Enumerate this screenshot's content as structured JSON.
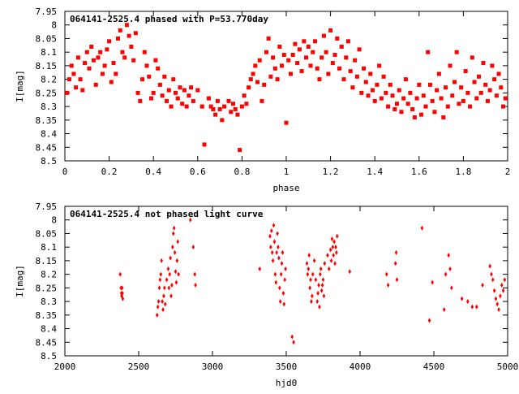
{
  "colors": {
    "points": "#ff0000",
    "axes": "#000000",
    "background": "#ffffff"
  },
  "chart_data": [
    {
      "type": "scatter",
      "title": "064141-2525.4 phased with P=53.770day",
      "xlabel": "phase",
      "ylabel": "I[mag]",
      "xlim": [
        0,
        2
      ],
      "ylim": [
        7.95,
        8.5
      ],
      "y_inverted": true,
      "grid": false,
      "legend": "none",
      "marker": "filled-square",
      "xticks": [
        0,
        0.2,
        0.4,
        0.6,
        0.8,
        1,
        1.2,
        1.4,
        1.6,
        1.8,
        2
      ],
      "xtick_labels": [
        "0",
        "0.2",
        "0.4",
        "0.6",
        "0.8",
        "1",
        "1.2",
        "1.4",
        "1.6",
        "1.8",
        "2"
      ],
      "yticks": [
        7.95,
        8,
        8.05,
        8.1,
        8.15,
        8.2,
        8.25,
        8.3,
        8.35,
        8.4,
        8.45,
        8.5
      ],
      "ytick_labels": [
        "7.95",
        "8",
        "8.05",
        "8.1",
        "8.15",
        "8.2",
        "8.25",
        "8.3",
        "8.35",
        "8.4",
        "8.45",
        "8.5"
      ],
      "points": [
        [
          0.01,
          8.25
        ],
        [
          0.02,
          8.2
        ],
        [
          0.03,
          8.15
        ],
        [
          0.04,
          8.18
        ],
        [
          0.05,
          8.23
        ],
        [
          0.06,
          8.12
        ],
        [
          0.07,
          8.2
        ],
        [
          0.08,
          8.24
        ],
        [
          0.09,
          8.14
        ],
        [
          0.1,
          8.1
        ],
        [
          0.11,
          8.16
        ],
        [
          0.12,
          8.08
        ],
        [
          0.13,
          8.13
        ],
        [
          0.14,
          8.22
        ],
        [
          0.15,
          8.12
        ],
        [
          0.16,
          8.1
        ],
        [
          0.17,
          8.18
        ],
        [
          0.18,
          8.15
        ],
        [
          0.19,
          8.09
        ],
        [
          0.2,
          8.06
        ],
        [
          0.21,
          8.21
        ],
        [
          0.22,
          8.14
        ],
        [
          0.23,
          8.18
        ],
        [
          0.24,
          8.05
        ],
        [
          0.25,
          8.02
        ],
        [
          0.26,
          8.1
        ],
        [
          0.27,
          8.12
        ],
        [
          0.28,
          8.0
        ],
        [
          0.29,
          8.04
        ],
        [
          0.3,
          8.08
        ],
        [
          0.31,
          8.13
        ],
        [
          0.32,
          8.03
        ],
        [
          0.33,
          8.25
        ],
        [
          0.34,
          8.28
        ],
        [
          0.35,
          8.2
        ],
        [
          0.36,
          8.1
        ],
        [
          0.37,
          8.15
        ],
        [
          0.38,
          8.19
        ],
        [
          0.39,
          8.27
        ],
        [
          0.4,
          8.25
        ],
        [
          0.41,
          8.13
        ],
        [
          0.42,
          8.16
        ],
        [
          0.43,
          8.22
        ],
        [
          0.44,
          8.26
        ],
        [
          0.45,
          8.19
        ],
        [
          0.46,
          8.28
        ],
        [
          0.47,
          8.24
        ],
        [
          0.48,
          8.3
        ],
        [
          0.49,
          8.2
        ],
        [
          0.5,
          8.25
        ],
        [
          0.51,
          8.27
        ],
        [
          0.52,
          8.23
        ],
        [
          0.53,
          8.29
        ],
        [
          0.54,
          8.24
        ],
        [
          0.55,
          8.3
        ],
        [
          0.56,
          8.26
        ],
        [
          0.57,
          8.23
        ],
        [
          0.58,
          8.28
        ],
        [
          0.6,
          8.24
        ],
        [
          0.62,
          8.3
        ],
        [
          0.63,
          8.44
        ],
        [
          0.65,
          8.27
        ],
        [
          0.66,
          8.3
        ],
        [
          0.67,
          8.31
        ],
        [
          0.68,
          8.33
        ],
        [
          0.69,
          8.28
        ],
        [
          0.7,
          8.31
        ],
        [
          0.71,
          8.35
        ],
        [
          0.72,
          8.3
        ],
        [
          0.74,
          8.28
        ],
        [
          0.75,
          8.32
        ],
        [
          0.76,
          8.29
        ],
        [
          0.77,
          8.31
        ],
        [
          0.78,
          8.33
        ],
        [
          0.79,
          8.46
        ],
        [
          0.8,
          8.3
        ],
        [
          0.81,
          8.26
        ],
        [
          0.82,
          8.29
        ],
        [
          0.83,
          8.23
        ],
        [
          0.84,
          8.2
        ],
        [
          0.85,
          8.18
        ],
        [
          0.86,
          8.15
        ],
        [
          0.87,
          8.21
        ],
        [
          0.88,
          8.13
        ],
        [
          0.89,
          8.28
        ],
        [
          0.9,
          8.22
        ],
        [
          0.91,
          8.1
        ],
        [
          0.92,
          8.05
        ],
        [
          0.93,
          8.19
        ],
        [
          0.94,
          8.12
        ],
        [
          0.95,
          8.16
        ],
        [
          0.96,
          8.2
        ],
        [
          0.97,
          8.08
        ],
        [
          0.98,
          8.15
        ],
        [
          0.99,
          8.11
        ],
        [
          1.0,
          8.36
        ],
        [
          1.01,
          8.13
        ],
        [
          1.02,
          8.18
        ],
        [
          1.03,
          8.11
        ],
        [
          1.04,
          8.07
        ],
        [
          1.05,
          8.14
        ],
        [
          1.06,
          8.09
        ],
        [
          1.07,
          8.17
        ],
        [
          1.08,
          8.06
        ],
        [
          1.09,
          8.12
        ],
        [
          1.1,
          8.08
        ],
        [
          1.11,
          8.15
        ],
        [
          1.12,
          8.1
        ],
        [
          1.13,
          8.06
        ],
        [
          1.14,
          8.16
        ],
        [
          1.15,
          8.2
        ],
        [
          1.16,
          8.12
        ],
        [
          1.17,
          8.04
        ],
        [
          1.18,
          8.1
        ],
        [
          1.19,
          8.18
        ],
        [
          1.2,
          8.02
        ],
        [
          1.21,
          8.14
        ],
        [
          1.22,
          8.11
        ],
        [
          1.23,
          8.05
        ],
        [
          1.24,
          8.16
        ],
        [
          1.25,
          8.08
        ],
        [
          1.26,
          8.2
        ],
        [
          1.27,
          8.12
        ],
        [
          1.28,
          8.06
        ],
        [
          1.29,
          8.17
        ],
        [
          1.3,
          8.23
        ],
        [
          1.31,
          8.13
        ],
        [
          1.32,
          8.19
        ],
        [
          1.33,
          8.09
        ],
        [
          1.34,
          8.25
        ],
        [
          1.35,
          8.16
        ],
        [
          1.36,
          8.21
        ],
        [
          1.37,
          8.26
        ],
        [
          1.38,
          8.18
        ],
        [
          1.39,
          8.24
        ],
        [
          1.4,
          8.28
        ],
        [
          1.41,
          8.22
        ],
        [
          1.42,
          8.15
        ],
        [
          1.43,
          8.27
        ],
        [
          1.44,
          8.19
        ],
        [
          1.45,
          8.25
        ],
        [
          1.46,
          8.3
        ],
        [
          1.47,
          8.22
        ],
        [
          1.48,
          8.26
        ],
        [
          1.49,
          8.31
        ],
        [
          1.5,
          8.29
        ],
        [
          1.51,
          8.24
        ],
        [
          1.52,
          8.32
        ],
        [
          1.53,
          8.27
        ],
        [
          1.54,
          8.2
        ],
        [
          1.55,
          8.29
        ],
        [
          1.56,
          8.25
        ],
        [
          1.57,
          8.31
        ],
        [
          1.58,
          8.34
        ],
        [
          1.59,
          8.27
        ],
        [
          1.6,
          8.22
        ],
        [
          1.61,
          8.33
        ],
        [
          1.62,
          8.26
        ],
        [
          1.63,
          8.3
        ],
        [
          1.64,
          8.1
        ],
        [
          1.65,
          8.22
        ],
        [
          1.66,
          8.28
        ],
        [
          1.67,
          8.32
        ],
        [
          1.68,
          8.24
        ],
        [
          1.69,
          8.18
        ],
        [
          1.7,
          8.27
        ],
        [
          1.71,
          8.34
        ],
        [
          1.72,
          8.23
        ],
        [
          1.73,
          8.3
        ],
        [
          1.74,
          8.15
        ],
        [
          1.75,
          8.26
        ],
        [
          1.76,
          8.21
        ],
        [
          1.77,
          8.1
        ],
        [
          1.78,
          8.29
        ],
        [
          1.79,
          8.23
        ],
        [
          1.8,
          8.28
        ],
        [
          1.81,
          8.17
        ],
        [
          1.82,
          8.25
        ],
        [
          1.83,
          8.3
        ],
        [
          1.84,
          8.12
        ],
        [
          1.85,
          8.21
        ],
        [
          1.86,
          8.27
        ],
        [
          1.87,
          8.19
        ],
        [
          1.88,
          8.25
        ],
        [
          1.89,
          8.14
        ],
        [
          1.9,
          8.22
        ],
        [
          1.91,
          8.28
        ],
        [
          1.92,
          8.24
        ],
        [
          1.93,
          8.15
        ],
        [
          1.94,
          8.2
        ],
        [
          1.95,
          8.26
        ],
        [
          1.96,
          8.18
        ],
        [
          1.97,
          8.23
        ],
        [
          1.98,
          8.3
        ],
        [
          1.99,
          8.27
        ]
      ]
    },
    {
      "type": "scatter",
      "title": "064141-2525.4 not phased light curve",
      "xlabel": "hjd0",
      "ylabel": "I[mag]",
      "xlim": [
        2000,
        5000
      ],
      "ylim": [
        7.95,
        8.5
      ],
      "y_inverted": true,
      "grid": false,
      "legend": "none",
      "marker": "small-diamond",
      "xticks": [
        2000,
        2500,
        3000,
        3500,
        4000,
        4500,
        5000
      ],
      "xtick_labels": [
        "2000",
        "2500",
        "3000",
        "3500",
        "4000",
        "4500",
        "5000"
      ],
      "yticks": [
        7.95,
        8,
        8.05,
        8.1,
        8.15,
        8.2,
        8.25,
        8.3,
        8.35,
        8.4,
        8.45,
        8.5
      ],
      "ytick_labels": [
        "7.95",
        "8",
        "8.05",
        "8.1",
        "8.15",
        "8.2",
        "8.25",
        "8.3",
        "8.35",
        "8.4",
        "8.45",
        "8.5"
      ],
      "points": [
        [
          2375,
          8.2
        ],
        [
          2380,
          8.25
        ],
        [
          2383,
          8.27
        ],
        [
          2385,
          8.28
        ],
        [
          2388,
          8.25
        ],
        [
          2390,
          8.27
        ],
        [
          2392,
          8.29
        ],
        [
          2625,
          8.35
        ],
        [
          2630,
          8.32
        ],
        [
          2635,
          8.3
        ],
        [
          2640,
          8.25
        ],
        [
          2645,
          8.22
        ],
        [
          2650,
          8.2
        ],
        [
          2655,
          8.15
        ],
        [
          2660,
          8.3
        ],
        [
          2665,
          8.33
        ],
        [
          2670,
          8.28
        ],
        [
          2675,
          8.25
        ],
        [
          2680,
          8.31
        ],
        [
          2690,
          8.22
        ],
        [
          2700,
          8.18
        ],
        [
          2705,
          8.25
        ],
        [
          2710,
          8.2
        ],
        [
          2715,
          8.14
        ],
        [
          2720,
          8.28
        ],
        [
          2725,
          8.24
        ],
        [
          2730,
          8.1
        ],
        [
          2735,
          8.05
        ],
        [
          2740,
          8.03
        ],
        [
          2745,
          8.12
        ],
        [
          2750,
          8.19
        ],
        [
          2755,
          8.23
        ],
        [
          2760,
          8.15
        ],
        [
          2765,
          8.08
        ],
        [
          2770,
          8.2
        ],
        [
          2850,
          8.0
        ],
        [
          2870,
          8.1
        ],
        [
          2880,
          8.2
        ],
        [
          2885,
          8.24
        ],
        [
          3320,
          8.18
        ],
        [
          3390,
          8.06
        ],
        [
          3395,
          8.1
        ],
        [
          3400,
          8.04
        ],
        [
          3405,
          8.12
        ],
        [
          3410,
          8.15
        ],
        [
          3415,
          8.02
        ],
        [
          3420,
          8.08
        ],
        [
          3425,
          8.2
        ],
        [
          3430,
          8.23
        ],
        [
          3435,
          8.12
        ],
        [
          3440,
          8.05
        ],
        [
          3445,
          8.1
        ],
        [
          3450,
          8.14
        ],
        [
          3455,
          8.25
        ],
        [
          3460,
          8.3
        ],
        [
          3465,
          8.2
        ],
        [
          3470,
          8.16
        ],
        [
          3475,
          8.12
        ],
        [
          3480,
          8.27
        ],
        [
          3485,
          8.31
        ],
        [
          3490,
          8.22
        ],
        [
          3495,
          8.18
        ],
        [
          3540,
          8.43
        ],
        [
          3550,
          8.45
        ],
        [
          3640,
          8.16
        ],
        [
          3645,
          8.2
        ],
        [
          3650,
          8.18
        ],
        [
          3655,
          8.13
        ],
        [
          3660,
          8.25
        ],
        [
          3665,
          8.22
        ],
        [
          3670,
          8.3
        ],
        [
          3675,
          8.28
        ],
        [
          3680,
          8.2
        ],
        [
          3690,
          8.15
        ],
        [
          3700,
          8.22
        ],
        [
          3710,
          8.3
        ],
        [
          3715,
          8.27
        ],
        [
          3720,
          8.24
        ],
        [
          3725,
          8.32
        ],
        [
          3730,
          8.2
        ],
        [
          3735,
          8.18
        ],
        [
          3740,
          8.26
        ],
        [
          3745,
          8.24
        ],
        [
          3750,
          8.22
        ],
        [
          3755,
          8.28
        ],
        [
          3760,
          8.16
        ],
        [
          3780,
          8.13
        ],
        [
          3790,
          8.18
        ],
        [
          3800,
          8.11
        ],
        [
          3805,
          8.15
        ],
        [
          3810,
          8.07
        ],
        [
          3815,
          8.1
        ],
        [
          3820,
          8.13
        ],
        [
          3825,
          8.08
        ],
        [
          3830,
          8.16
        ],
        [
          3835,
          8.1
        ],
        [
          3840,
          8.12
        ],
        [
          3845,
          8.06
        ],
        [
          3930,
          8.19
        ],
        [
          4180,
          8.2
        ],
        [
          4190,
          8.24
        ],
        [
          4240,
          8.16
        ],
        [
          4245,
          8.12
        ],
        [
          4250,
          8.22
        ],
        [
          4420,
          8.03
        ],
        [
          4470,
          8.37
        ],
        [
          4490,
          8.23
        ],
        [
          4570,
          8.33
        ],
        [
          4580,
          8.2
        ],
        [
          4600,
          8.13
        ],
        [
          4610,
          8.18
        ],
        [
          4620,
          8.25
        ],
        [
          4690,
          8.29
        ],
        [
          4730,
          8.3
        ],
        [
          4760,
          8.32
        ],
        [
          4790,
          8.32
        ],
        [
          4830,
          8.24
        ],
        [
          4880,
          8.17
        ],
        [
          4890,
          8.2
        ],
        [
          4900,
          8.22
        ],
        [
          4910,
          8.26
        ],
        [
          4920,
          8.29
        ],
        [
          4930,
          8.31
        ],
        [
          4940,
          8.33
        ],
        [
          4950,
          8.28
        ],
        [
          4960,
          8.24
        ],
        [
          4970,
          8.26
        ],
        [
          4980,
          8.22
        ]
      ]
    }
  ]
}
